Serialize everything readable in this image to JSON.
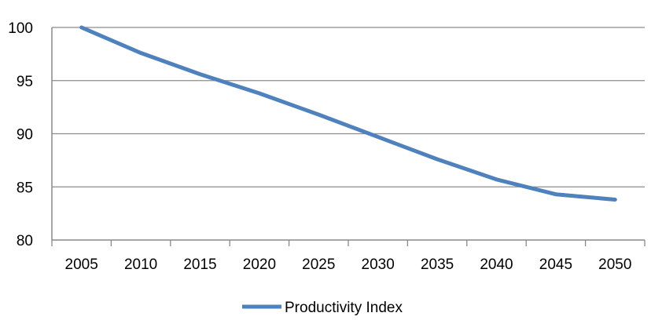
{
  "chart_data": {
    "type": "line",
    "x": [
      "2005",
      "2010",
      "2015",
      "2020",
      "2025",
      "2030",
      "2035",
      "2040",
      "2045",
      "2050"
    ],
    "series": [
      {
        "name": "Productivity Index",
        "values": [
          100,
          97.6,
          95.6,
          93.8,
          91.8,
          89.7,
          87.6,
          85.7,
          84.3,
          83.8
        ],
        "color": "#4f81bd"
      }
    ],
    "ylim": [
      80,
      100
    ],
    "yticks": [
      80,
      85,
      90,
      95,
      100
    ],
    "grid": true,
    "legend": "bottom",
    "title": "",
    "xlabel": "",
    "ylabel": ""
  }
}
